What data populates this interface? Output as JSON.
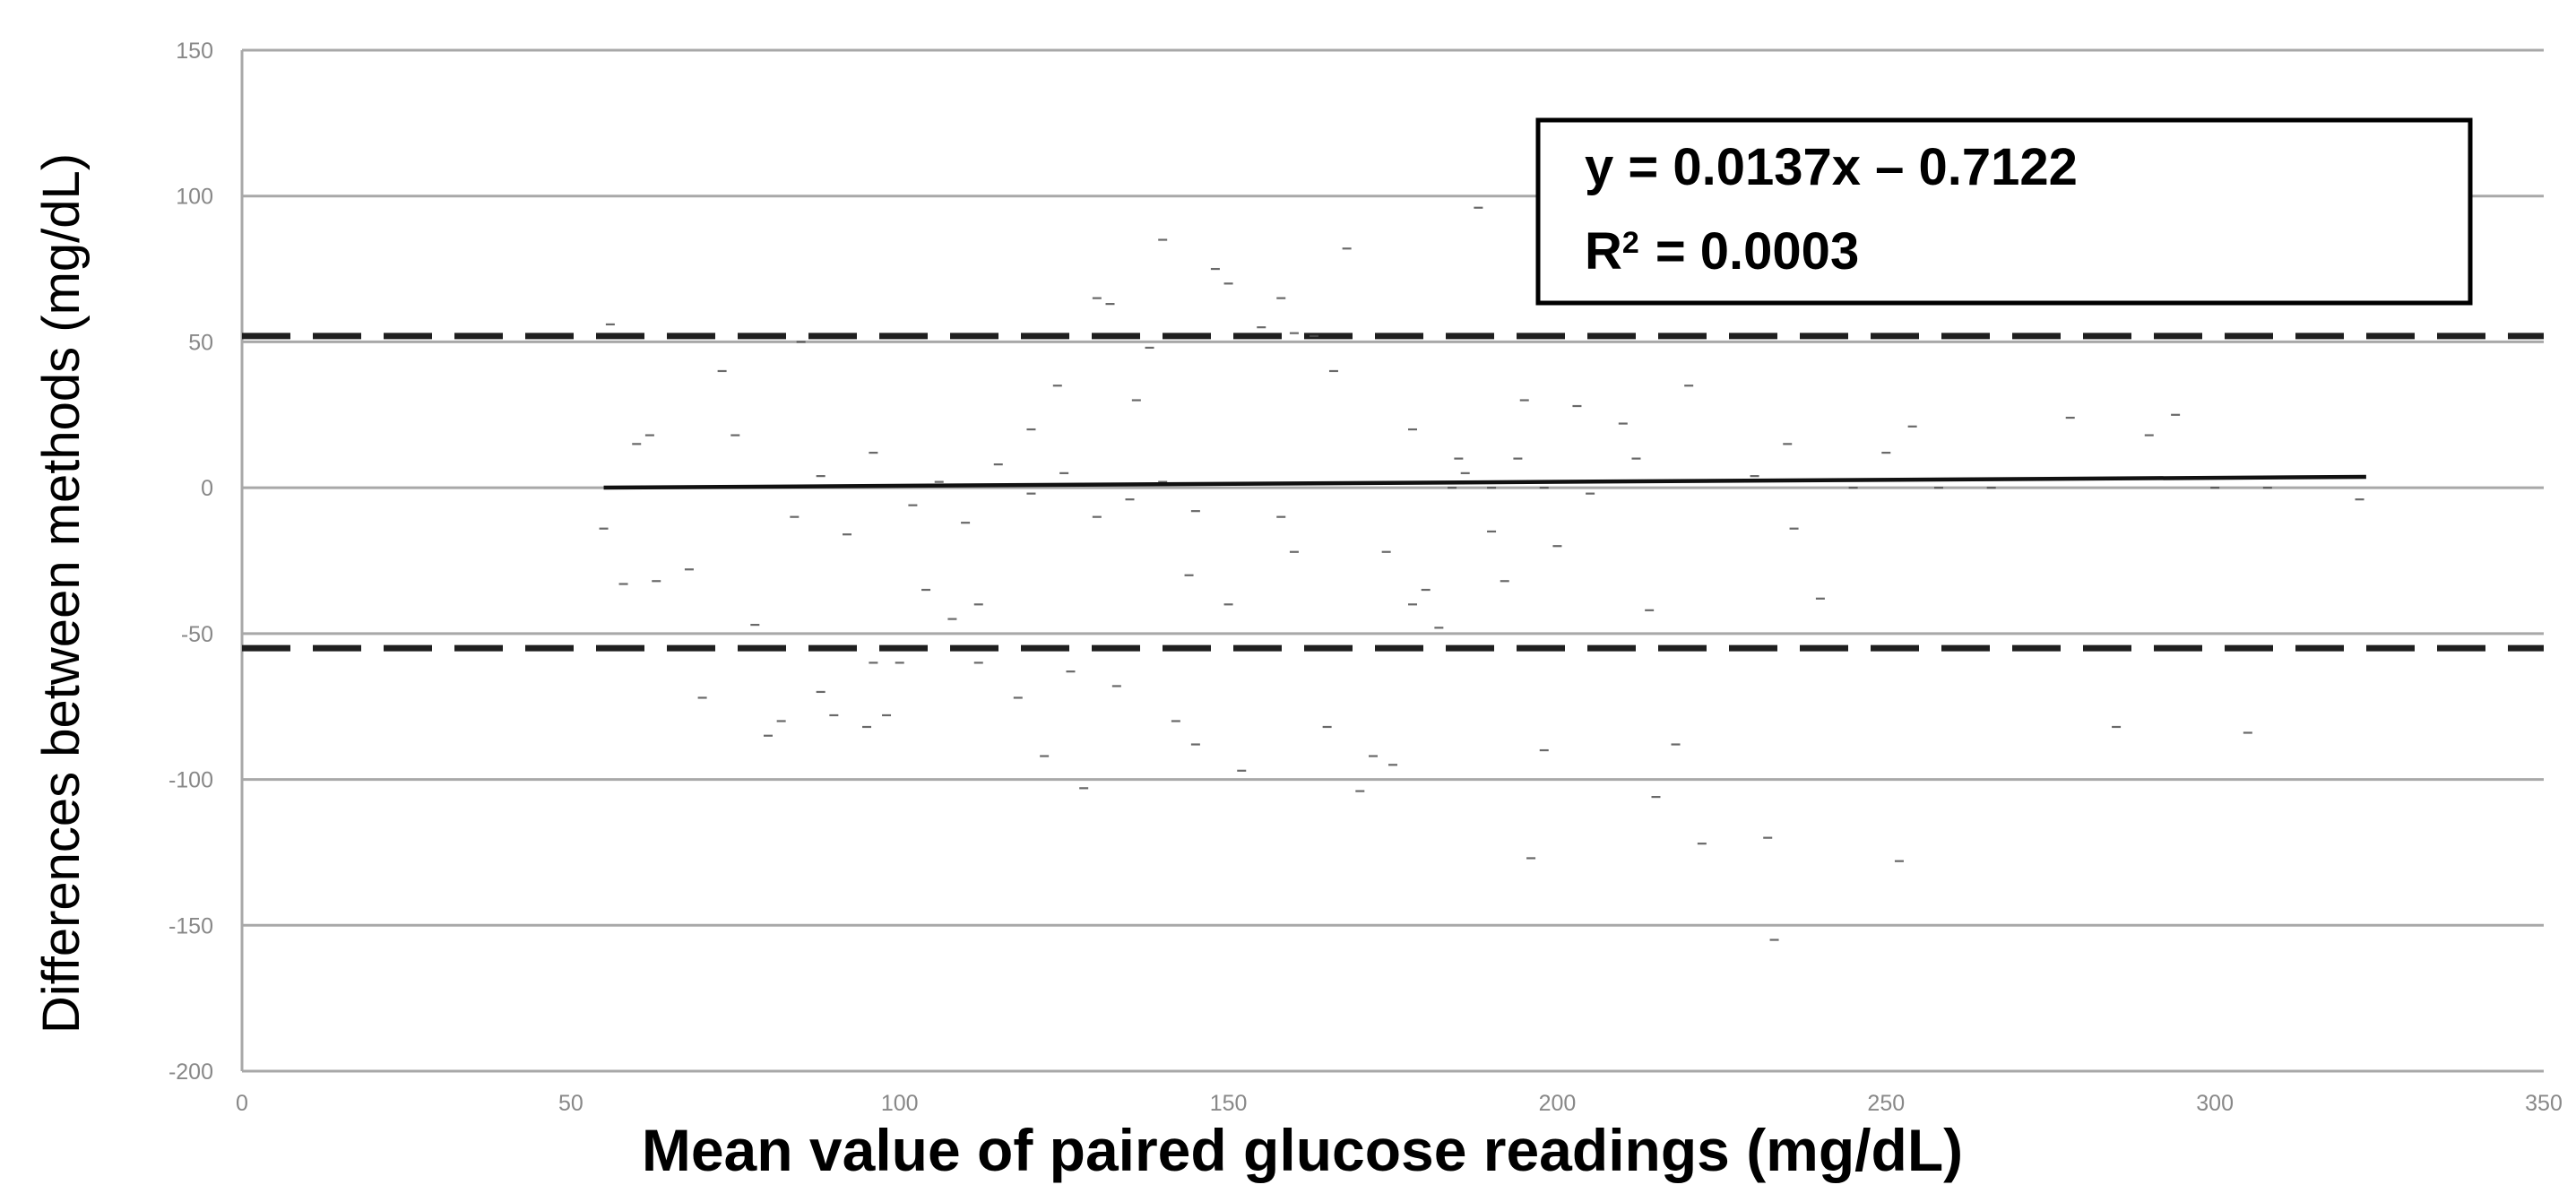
{
  "chart_data": {
    "type": "scatter",
    "title": "",
    "xlabel": "Mean value of paired glucose readings (mg/dL)",
    "ylabel": "Differences between methods (mg/dL)",
    "xlim": [
      0,
      350
    ],
    "ylim": [
      -200,
      150
    ],
    "xticks": [
      0,
      50,
      100,
      150,
      200,
      250,
      300,
      350
    ],
    "yticks": [
      150,
      100,
      50,
      0,
      -50,
      -100,
      -150,
      -200
    ],
    "xtick_labels": [
      "0",
      "50",
      "100",
      "150",
      "200",
      "250",
      "300",
      "350"
    ],
    "ytick_labels": [
      "150",
      "100",
      "50",
      "0",
      "-50",
      "-100",
      "-150",
      "-200"
    ],
    "grid": "horizontal",
    "trendline": {
      "equation": "y = 0.0137x – 0.7122",
      "r_squared_label": "R",
      "r_squared_superscript": "2",
      "r_squared_value": "= 0.0003",
      "slope": 0.0137,
      "intercept": -0.7122,
      "x_start": 55,
      "x_end": 323
    },
    "limits_of_agreement": [
      52,
      -55
    ],
    "series": [
      {
        "points": [
          [
            56,
            56
          ],
          [
            60,
            15
          ],
          [
            62,
            18
          ],
          [
            55,
            -14
          ],
          [
            58,
            -33
          ],
          [
            63,
            -32
          ],
          [
            68,
            -28
          ],
          [
            70,
            -72
          ],
          [
            73,
            40
          ],
          [
            75,
            18
          ],
          [
            78,
            -47
          ],
          [
            80,
            -85
          ],
          [
            82,
            -80
          ],
          [
            85,
            50
          ],
          [
            88,
            -70
          ],
          [
            90,
            -78
          ],
          [
            95,
            -82
          ],
          [
            98,
            -78
          ],
          [
            100,
            -60
          ],
          [
            104,
            -35
          ],
          [
            108,
            -45
          ],
          [
            112,
            -40
          ],
          [
            118,
            -72
          ],
          [
            122,
            -92
          ],
          [
            128,
            -103
          ],
          [
            130,
            65
          ],
          [
            132,
            63
          ],
          [
            138,
            48
          ],
          [
            140,
            85
          ],
          [
            142,
            -80
          ],
          [
            145,
            -88
          ],
          [
            148,
            75
          ],
          [
            150,
            70
          ],
          [
            152,
            -97
          ],
          [
            155,
            55
          ],
          [
            158,
            65
          ],
          [
            160,
            53
          ],
          [
            163,
            52
          ],
          [
            165,
            -82
          ],
          [
            168,
            82
          ],
          [
            170,
            -104
          ],
          [
            172,
            -92
          ],
          [
            175,
            -95
          ],
          [
            178,
            20
          ],
          [
            180,
            -35
          ],
          [
            182,
            -48
          ],
          [
            185,
            10
          ],
          [
            188,
            96
          ],
          [
            190,
            -15
          ],
          [
            192,
            -32
          ],
          [
            195,
            30
          ],
          [
            196,
            -127
          ],
          [
            198,
            -90
          ],
          [
            200,
            -20
          ],
          [
            203,
            28
          ],
          [
            205,
            -2
          ],
          [
            210,
            22
          ],
          [
            212,
            10
          ],
          [
            214,
            -42
          ],
          [
            215,
            -106
          ],
          [
            218,
            -88
          ],
          [
            220,
            35
          ],
          [
            222,
            -122
          ],
          [
            230,
            4
          ],
          [
            232,
            -120
          ],
          [
            233,
            -155
          ],
          [
            235,
            15
          ],
          [
            236,
            -14
          ],
          [
            240,
            -38
          ],
          [
            245,
            0
          ],
          [
            250,
            12
          ],
          [
            252,
            -128
          ],
          [
            254,
            21
          ],
          [
            258,
            0
          ],
          [
            266,
            0
          ],
          [
            270,
            3
          ],
          [
            278,
            24
          ],
          [
            285,
            -82
          ],
          [
            290,
            18
          ],
          [
            294,
            25
          ],
          [
            300,
            0
          ],
          [
            305,
            -84
          ],
          [
            308,
            0
          ],
          [
            322,
            -4
          ],
          [
            96,
            -60
          ],
          [
            126,
            -63
          ],
          [
            133,
            -68
          ],
          [
            112,
            -60
          ],
          [
            120,
            20
          ],
          [
            124,
            35
          ],
          [
            136,
            30
          ],
          [
            144,
            -30
          ],
          [
            150,
            -40
          ],
          [
            158,
            -10
          ],
          [
            160,
            -22
          ],
          [
            166,
            40
          ],
          [
            174,
            -22
          ],
          [
            178,
            -40
          ],
          [
            184,
            0
          ],
          [
            186,
            5
          ],
          [
            190,
            0
          ],
          [
            194,
            10
          ],
          [
            198,
            0
          ],
          [
            115,
            8
          ],
          [
            110,
            -12
          ],
          [
            106,
            2
          ],
          [
            102,
            -6
          ],
          [
            120,
            -2
          ],
          [
            125,
            5
          ],
          [
            130,
            -10
          ],
          [
            135,
            -4
          ],
          [
            140,
            2
          ],
          [
            145,
            -8
          ],
          [
            88,
            4
          ],
          [
            92,
            -16
          ],
          [
            84,
            -10
          ],
          [
            96,
            12
          ]
        ]
      }
    ]
  }
}
